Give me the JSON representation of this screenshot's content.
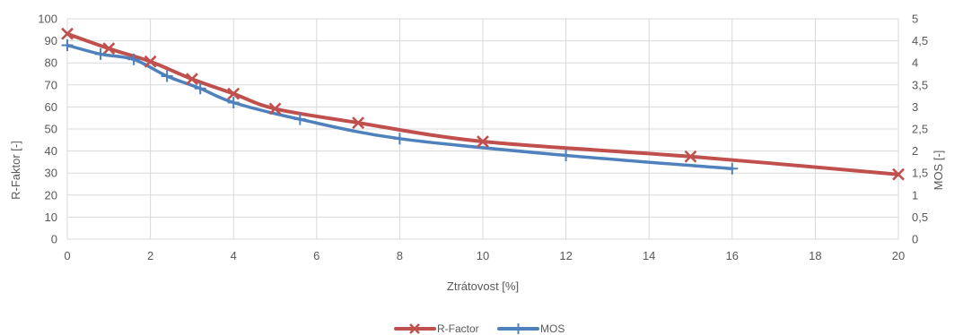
{
  "chart_data": {
    "type": "line",
    "xlabel": "Ztrátovost [%]",
    "ylabel_left": "R-Faktor [-]",
    "ylabel_right": "MOS [-]",
    "xlim": [
      0,
      20
    ],
    "x_ticks": [
      "0",
      "2",
      "4",
      "6",
      "8",
      "10",
      "12",
      "14",
      "16",
      "18",
      "20"
    ],
    "ylim_left": [
      0,
      100
    ],
    "y_ticks_left": [
      "0",
      "10",
      "20",
      "30",
      "40",
      "50",
      "60",
      "70",
      "80",
      "90",
      "100"
    ],
    "ylim_right": [
      0,
      5
    ],
    "y_ticks_right": [
      "0",
      "0,5",
      "1",
      "1,5",
      "2",
      "2,5",
      "3",
      "3,5",
      "4",
      "4,5",
      "5"
    ],
    "grid": true,
    "legend_position": "bottom",
    "series": [
      {
        "name": "R-Factor",
        "axis": "left",
        "color": "#c0504d",
        "marker": "x",
        "x": [
          0,
          1,
          2,
          3,
          4,
          5,
          7,
          10,
          15,
          20
        ],
        "y": [
          93.2,
          86.5,
          80.6,
          72.7,
          66.0,
          59.2,
          52.8,
          44.3,
          37.5,
          29.4
        ]
      },
      {
        "name": "MOS",
        "axis": "right",
        "color": "#4f81bd",
        "marker": "plus",
        "x": [
          0,
          0.8,
          1.6,
          2.4,
          3.2,
          4.0,
          5.6,
          8.0,
          12.0,
          16.0
        ],
        "y": [
          4.4,
          4.2,
          4.08,
          3.7,
          3.42,
          3.1,
          2.72,
          2.28,
          1.9,
          1.6
        ]
      }
    ]
  }
}
